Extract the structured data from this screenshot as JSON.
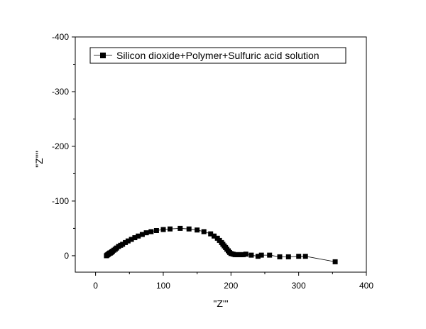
{
  "chart_data": {
    "type": "scatter",
    "title": "",
    "xlabel": "\"Z'\"",
    "ylabel": "\"Z''\"",
    "xlim": [
      -30,
      400
    ],
    "ylim": [
      30,
      -400
    ],
    "y_axis_inverted": true,
    "grid": false,
    "legend_position": "top-left",
    "xticks": [
      0,
      100,
      200,
      300,
      400
    ],
    "xtick_labels": [
      "0",
      "100",
      "200",
      "300",
      "400"
    ],
    "yticks": [
      0,
      -100,
      -200,
      -300,
      -400
    ],
    "ytick_labels": [
      "0",
      "-100",
      "-200",
      "-300",
      "-400"
    ],
    "colors": {
      "marker": "#000000",
      "line": "#000000"
    },
    "series": [
      {
        "name": "Silicon dioxide+Polymer+Sulfuric acid solution",
        "marker": "square",
        "x": [
          16,
          17,
          18,
          19,
          20,
          21,
          22,
          23,
          24,
          25,
          27,
          29,
          31,
          34,
          37,
          40,
          44,
          48,
          53,
          58,
          63,
          69,
          75,
          82,
          90,
          100,
          110,
          125,
          138,
          150,
          160,
          170,
          175,
          180,
          183,
          186,
          188,
          190,
          192,
          194,
          196,
          198,
          200,
          203,
          206,
          209,
          212,
          215,
          218,
          222,
          230,
          240,
          245,
          257,
          272,
          285,
          300,
          310,
          354
        ],
        "y": [
          0,
          -1,
          -2,
          -3,
          -4,
          -5,
          -5,
          -6,
          -7,
          -8,
          -10,
          -12,
          -14,
          -17,
          -19,
          -21,
          -24,
          -27,
          -30,
          -33,
          -36,
          -39,
          -42,
          -44,
          -46,
          -48,
          -49,
          -50,
          -49,
          -47,
          -44,
          -40,
          -36,
          -32,
          -28,
          -24,
          -21,
          -18,
          -15,
          -12,
          -9,
          -6,
          -4,
          -3,
          -2,
          -2,
          -2,
          -2,
          -2,
          -3,
          -1,
          1,
          -1,
          -1,
          2,
          2,
          1,
          1,
          11
        ]
      }
    ]
  }
}
